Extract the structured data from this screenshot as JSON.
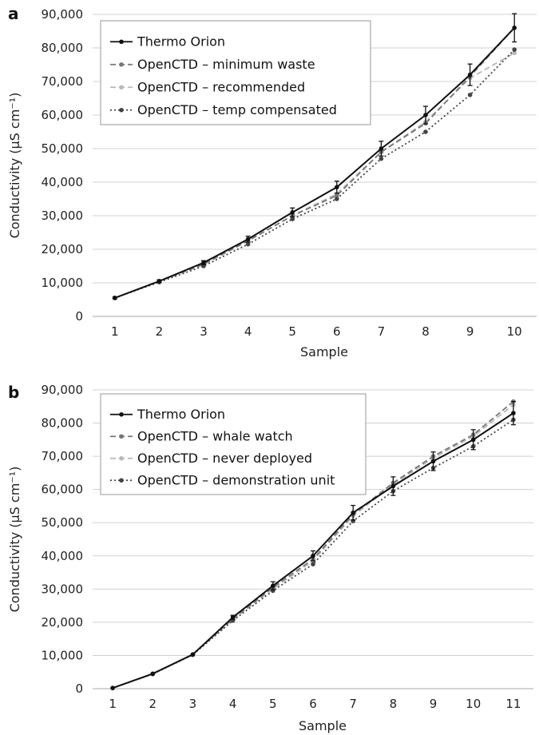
{
  "chart_data": [
    {
      "panel": "a",
      "type": "line",
      "xlabel": "Sample",
      "ylabel": "Conductivity (µS cm⁻¹)",
      "categories": [
        "1",
        "2",
        "3",
        "4",
        "5",
        "6",
        "7",
        "8",
        "9",
        "10"
      ],
      "ylim": [
        0,
        90000
      ],
      "yticks": [
        "0",
        "10,000",
        "20,000",
        "30,000",
        "40,000",
        "50,000",
        "60,000",
        "70,000",
        "80,000",
        "90,000"
      ],
      "grid": true,
      "legend_position": "top-left",
      "series": [
        {
          "name": "Thermo Orion",
          "color": "#111111",
          "dash": "solid",
          "values": [
            5500,
            10500,
            16000,
            23000,
            31000,
            38500,
            50000,
            60000,
            72000,
            86000
          ],
          "errors": [
            300,
            400,
            600,
            900,
            1300,
            1800,
            2200,
            2600,
            3200,
            4200
          ]
        },
        {
          "name": "OpenCTD – minimum waste",
          "color": "#777777",
          "dash": "dashed",
          "values": [
            5500,
            10500,
            15500,
            22500,
            30000,
            36000,
            49000,
            57500,
            71500,
            86000
          ],
          "errors": []
        },
        {
          "name": "OpenCTD – recommended",
          "color": "#b8b8b8",
          "dash": "dashed",
          "values": [
            5500,
            10500,
            15800,
            22500,
            30000,
            36500,
            49000,
            58000,
            71000,
            78500
          ],
          "errors": []
        },
        {
          "name": "OpenCTD – temp compensated",
          "color": "#444444",
          "dash": "dotted",
          "values": [
            5500,
            10200,
            15000,
            21500,
            29000,
            35000,
            47000,
            55000,
            66000,
            79500
          ],
          "errors": []
        }
      ]
    },
    {
      "panel": "b",
      "type": "line",
      "xlabel": "Sample",
      "ylabel": "Conductivity (µS cm⁻¹)",
      "categories": [
        "1",
        "2",
        "3",
        "4",
        "5",
        "6",
        "7",
        "8",
        "9",
        "10",
        "11"
      ],
      "ylim": [
        0,
        90000
      ],
      "yticks": [
        "0",
        "10,000",
        "20,000",
        "30,000",
        "40,000",
        "50,000",
        "60,000",
        "70,000",
        "80,000",
        "90,000"
      ],
      "grid": true,
      "legend_position": "top-left",
      "series": [
        {
          "name": "Thermo Orion",
          "color": "#111111",
          "dash": "solid",
          "values": [
            200,
            4500,
            10300,
            21500,
            31000,
            40000,
            53000,
            61000,
            68500,
            75000,
            83000
          ],
          "errors": [
            0,
            0,
            0,
            600,
            1200,
            1500,
            2200,
            2800,
            2800,
            3000,
            3500
          ]
        },
        {
          "name": "OpenCTD – whale watch",
          "color": "#777777",
          "dash": "dashed",
          "values": [
            200,
            4500,
            10300,
            21000,
            30500,
            39000,
            52500,
            62000,
            70000,
            76500,
            86500
          ],
          "errors": []
        },
        {
          "name": "OpenCTD – never deployed",
          "color": "#b8b8b8",
          "dash": "dashed",
          "values": [
            200,
            4500,
            10300,
            21000,
            30000,
            38500,
            52000,
            61500,
            69500,
            76000,
            85500
          ],
          "errors": []
        },
        {
          "name": "OpenCTD – demonstration unit",
          "color": "#444444",
          "dash": "dotted",
          "values": [
            200,
            4400,
            10200,
            20500,
            29500,
            37500,
            50500,
            59500,
            66500,
            73000,
            81000
          ],
          "errors": []
        }
      ]
    }
  ]
}
